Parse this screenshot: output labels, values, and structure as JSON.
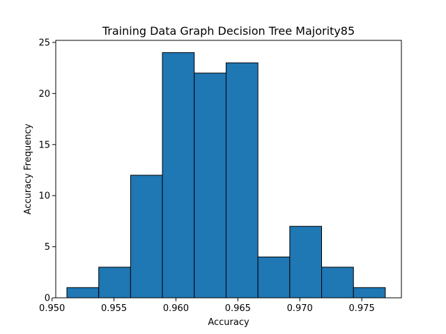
{
  "chart_data": {
    "type": "bar",
    "title": "Training Data Graph Decision Tree Majority85",
    "xlabel": "Accuracy",
    "ylabel": "Accuracy Frequency",
    "bin_edges": [
      0.9512,
      0.95377,
      0.95634,
      0.95891,
      0.96148,
      0.96405,
      0.96662,
      0.96919,
      0.97176,
      0.97433,
      0.9769
    ],
    "values": [
      1,
      3,
      12,
      24,
      22,
      23,
      4,
      7,
      3,
      1
    ],
    "xlim": [
      0.9503,
      0.9782
    ],
    "ylim": [
      0,
      25.2
    ],
    "xticks": [
      0.95,
      0.955,
      0.96,
      0.965,
      0.97,
      0.975
    ],
    "xtick_labels": [
      "0.950",
      "0.955",
      "0.960",
      "0.965",
      "0.970",
      "0.975"
    ],
    "yticks": [
      0,
      5,
      10,
      15,
      20,
      25
    ],
    "ytick_labels": [
      "0",
      "5",
      "10",
      "15",
      "20",
      "25"
    ],
    "bar_color": "#1f77b4",
    "edge_color": "#000000",
    "grid": false,
    "legend": "none"
  }
}
